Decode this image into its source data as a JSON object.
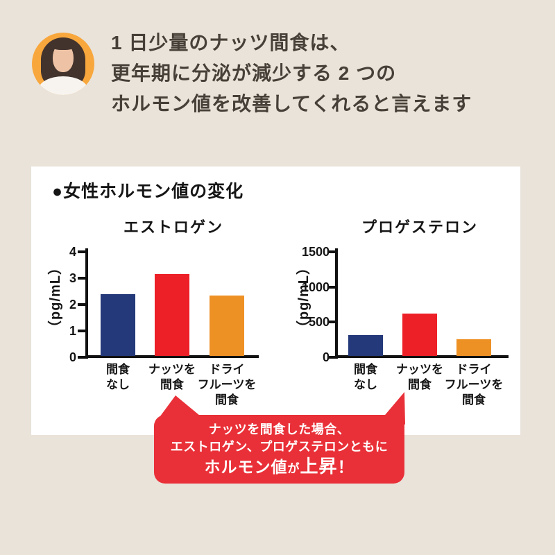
{
  "colors": {
    "background": "#e9e3da",
    "card": "#ffffff",
    "headline_text": "#474038",
    "navy": "#24397a",
    "red": "#ed2027",
    "orange": "#ee9125",
    "bubble_red": "#e93038",
    "avatar_circle": "#f8a73d",
    "axis_black": "#111111"
  },
  "header": {
    "avatar": "woman-portrait-on-orange-circle",
    "lines": [
      "1 日少量のナッツ間食は、",
      "更年期に分泌が減少する 2 つの",
      "ホルモン値を改善してくれると言えます"
    ]
  },
  "card": {
    "title": "●女性ホルモン値の変化"
  },
  "chart_data": [
    {
      "type": "bar",
      "title": "エストロゲン",
      "ylabel": "（pg/mL）",
      "categories": [
        "間食 なし",
        "ナッツを 間食",
        "ドライ フルーツを 間食"
      ],
      "category_lines": [
        [
          "間食",
          "なし"
        ],
        [
          "ナッツを",
          "間食"
        ],
        [
          "ドライ",
          "フルーツを",
          "間食"
        ]
      ],
      "values": [
        2.35,
        3.1,
        2.3
      ],
      "yticks": [
        0,
        1,
        2,
        3,
        4
      ],
      "ylim": [
        0,
        4
      ],
      "bar_colors": [
        "#24397a",
        "#ed2027",
        "#ee9125"
      ],
      "grid": false,
      "legend": false
    },
    {
      "type": "bar",
      "title": "プロゲステロン",
      "ylabel": "（pg/mL）",
      "categories": [
        "間食 なし",
        "ナッツを 間食",
        "ドライ フルーツを 間食"
      ],
      "category_lines": [
        [
          "間食",
          "なし"
        ],
        [
          "ナッツを",
          "間食"
        ],
        [
          "ドライ",
          "フルーツを",
          "間食"
        ]
      ],
      "values": [
        300,
        600,
        240
      ],
      "yticks": [
        0,
        500,
        1000,
        1500
      ],
      "ylim": [
        0,
        1500
      ],
      "bar_colors": [
        "#24397a",
        "#ed2027",
        "#ee9125"
      ],
      "grid": false,
      "legend": false
    }
  ],
  "callout": {
    "line1": "ナッツを間食した場合、",
    "line2": "エストロゲン、プロゲステロンともに",
    "line3_a": "ホルモン値",
    "line3_b": "が",
    "line3_c": "上昇",
    "line3_d": "！"
  }
}
